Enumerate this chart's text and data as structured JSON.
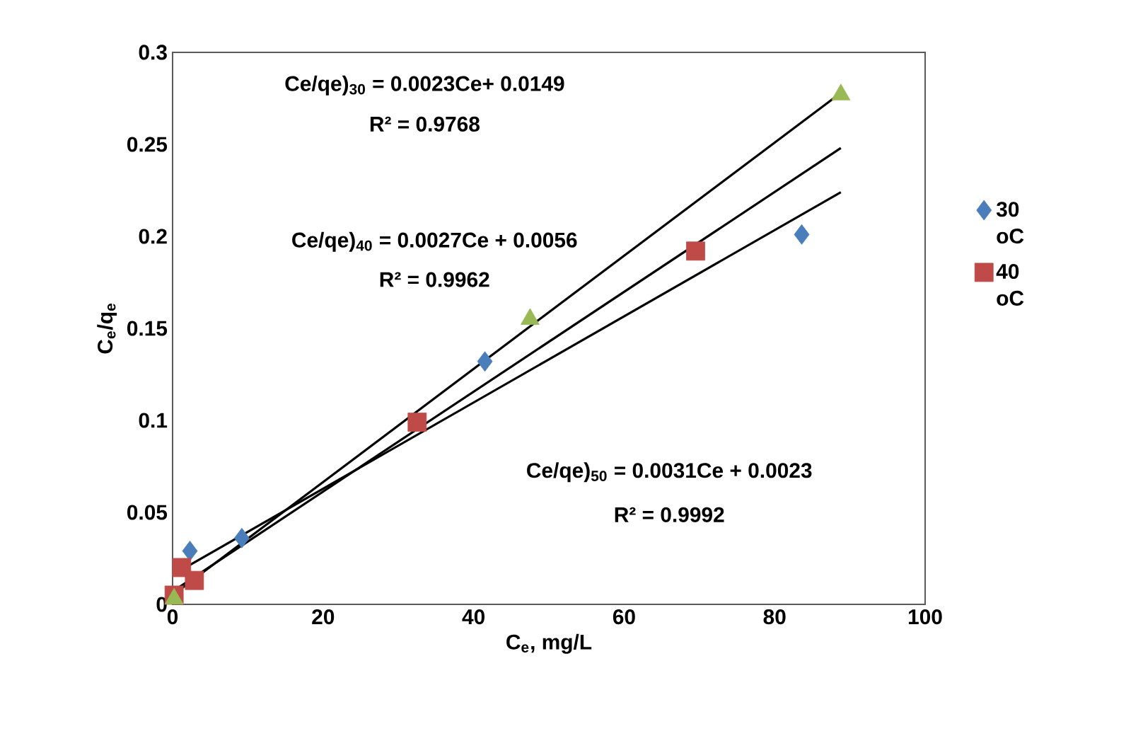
{
  "chart_data": {
    "type": "scatter",
    "xlabel": "C$_{e}$, mg/L",
    "ylabel": "C$_{e}$/q$_{e}$",
    "xlim": [
      0,
      100
    ],
    "ylim": [
      0,
      0.3
    ],
    "xticks": [
      0,
      20,
      40,
      60,
      80,
      100
    ],
    "yticks": [
      0,
      0.05,
      0.1,
      0.15,
      0.2,
      0.25,
      0.3
    ],
    "grid": false,
    "legend": "right",
    "series": [
      {
        "name": "30 oC",
        "marker": "diamond",
        "color": "#4a7ebb",
        "x": [
          2.3,
          9.2,
          41.5,
          83.6
        ],
        "values": [
          0.029,
          0.036,
          0.132,
          0.201
        ]
      },
      {
        "name": "40 oC",
        "marker": "square",
        "color": "#be4b48",
        "x": [
          0.2,
          1.2,
          2.9,
          32.5,
          69.5
        ],
        "values": [
          0.005,
          0.02,
          0.013,
          0.099,
          0.192
        ]
      },
      {
        "marker": "triangle",
        "color": "#98b954",
        "x": [
          0.2,
          47.5,
          88.8
        ],
        "values": [
          0.003,
          0.155,
          0.277
        ]
      },
      {
        "type": "line",
        "marker": "none",
        "line_style": "solid",
        "color": "#000000",
        "x": [
          0,
          88.8
        ],
        "values": [
          0.016,
          0.224
        ]
      },
      {
        "type": "line",
        "marker": "none",
        "line_style": "solid",
        "color": "#000000",
        "x": [
          0,
          88.8
        ],
        "values": [
          0.007,
          0.248
        ]
      },
      {
        "type": "line",
        "marker": "none",
        "line_style": "solid",
        "color": "#000000",
        "x": [
          0,
          88.8
        ],
        "values": [
          0.005,
          0.278
        ]
      }
    ],
    "annotations": [
      "Ce/qe)$_{30}$  = 0.0023Ce+ 0.0149",
      "R² = 0.9768",
      "Ce/qe)$_{40}$ = 0.0027Ce + 0.0056",
      "R² = 0.9962",
      "Ce/qe)$_{50}$   = 0.0031Ce + 0.0023",
      "R² = 0.9992"
    ]
  }
}
